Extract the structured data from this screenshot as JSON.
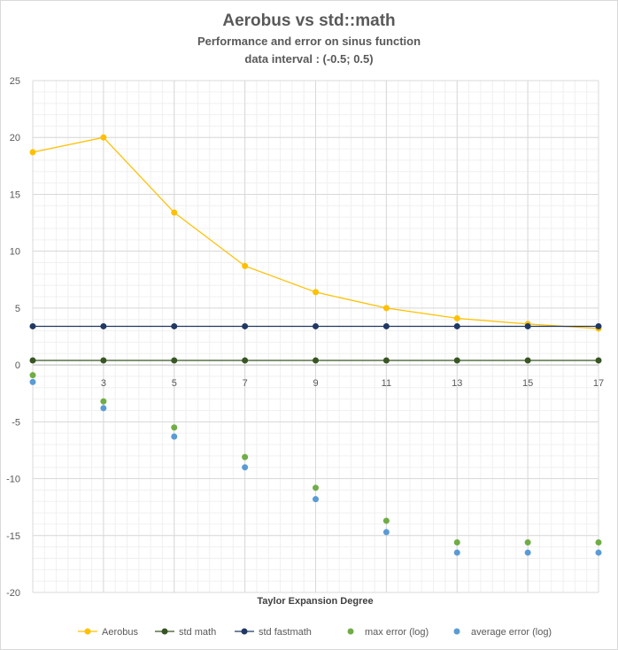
{
  "chart_data": {
    "type": "line",
    "title": "Aerobus vs std::math",
    "subtitle_lines": [
      "Performance and error on sinus function",
      "data interval : (-0.5; 0.5)"
    ],
    "xlabel": "Taylor Expansion Degree",
    "ylabel": "",
    "x": [
      1,
      3,
      5,
      7,
      9,
      11,
      13,
      15,
      17
    ],
    "x_tick_labels": [
      "3",
      "5",
      "7",
      "9",
      "11",
      "13",
      "15",
      "17"
    ],
    "ylim": [
      -20,
      25
    ],
    "y_ticks": [
      -20,
      -15,
      -10,
      -5,
      0,
      5,
      10,
      15,
      20,
      25
    ],
    "grid": true,
    "legend_position": "bottom",
    "series": [
      {
        "name": "Aerobus",
        "type": "line",
        "color": "#FFC000",
        "values": [
          18.7,
          20.0,
          13.4,
          8.7,
          6.4,
          5.0,
          4.1,
          3.6,
          3.2
        ]
      },
      {
        "name": "std math",
        "type": "line",
        "color": "#375623",
        "values": [
          0.4,
          0.4,
          0.4,
          0.4,
          0.4,
          0.4,
          0.4,
          0.4,
          0.4
        ]
      },
      {
        "name": "std fastmath",
        "type": "line",
        "color": "#203864",
        "values": [
          3.4,
          3.4,
          3.4,
          3.4,
          3.4,
          3.4,
          3.4,
          3.4,
          3.4
        ]
      },
      {
        "name": "max error (log)",
        "type": "scatter",
        "color": "#70AD47",
        "values": [
          -0.9,
          -3.2,
          -5.5,
          -8.1,
          -10.8,
          -13.7,
          -15.6,
          -15.6,
          -15.6
        ]
      },
      {
        "name": "average error (log)",
        "type": "scatter",
        "color": "#5B9BD5",
        "values": [
          -1.5,
          -3.8,
          -6.3,
          -9.0,
          -11.8,
          -14.7,
          -16.5,
          -16.5,
          -16.5
        ]
      }
    ]
  }
}
